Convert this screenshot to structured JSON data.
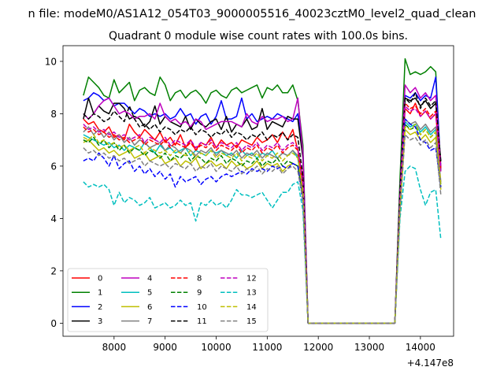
{
  "figure": {
    "suptitle": "n file: modeM0/AS1A12_054T03_9000005516_40023cztM0_level2_quad_clean",
    "offset_text": "+4.147e8"
  },
  "chart_data": {
    "type": "line",
    "title": "Quadrant 0 module wise count rates with 100.0s bins.",
    "xlabel": "",
    "ylabel": "",
    "x_offset": 414700000,
    "xlim": [
      7000,
      14650
    ],
    "ylim": [
      -0.5,
      10.6
    ],
    "xticks": [
      8000,
      9000,
      10000,
      11000,
      12000,
      13000,
      14000
    ],
    "yticks": [
      0,
      2,
      4,
      6,
      8,
      10
    ],
    "grid": false,
    "legend": {
      "position": "lower-left",
      "columns": 4
    },
    "x": [
      7400,
      7500,
      7600,
      7700,
      7800,
      7900,
      8000,
      8100,
      8200,
      8300,
      8400,
      8500,
      8600,
      8700,
      8800,
      8900,
      9000,
      9100,
      9200,
      9300,
      9400,
      9500,
      9600,
      9700,
      9800,
      9900,
      10000,
      10100,
      10200,
      10300,
      10400,
      10500,
      10600,
      10700,
      10800,
      10900,
      11000,
      11100,
      11200,
      11300,
      11400,
      11500,
      11600,
      11700,
      11800,
      11900,
      12000,
      12100,
      12200,
      12300,
      12400,
      12500,
      12600,
      12700,
      12800,
      12900,
      13000,
      13100,
      13200,
      13300,
      13400,
      13500,
      13600,
      13700,
      13800,
      13900,
      14000,
      14100,
      14200,
      14300,
      14400
    ],
    "series": [
      {
        "name": "0",
        "color": "#ff0000",
        "dash": false,
        "values": [
          7.8,
          7.6,
          7.7,
          7.4,
          7.3,
          7.5,
          7.1,
          7.2,
          7.0,
          7.6,
          7.3,
          7.1,
          7.4,
          7.2,
          7.0,
          7.3,
          6.9,
          7.1,
          6.8,
          7.2,
          6.7,
          7.0,
          6.6,
          6.9,
          6.8,
          7.1,
          6.7,
          7.0,
          6.8,
          6.9,
          6.7,
          7.0,
          6.9,
          6.8,
          7.1,
          6.9,
          7.0,
          7.2,
          6.9,
          7.3,
          7.0,
          7.4,
          6.6,
          5.5,
          0,
          0,
          0,
          0,
          0,
          0,
          0,
          0,
          0,
          0,
          0,
          0,
          0,
          0,
          0,
          0,
          0,
          0,
          4.5,
          8.2,
          8.0,
          8.4,
          7.9,
          8.1,
          7.8,
          8.0,
          5.8
        ]
      },
      {
        "name": "1",
        "color": "#008000",
        "dash": false,
        "values": [
          8.7,
          9.4,
          9.2,
          9.0,
          8.7,
          8.6,
          9.3,
          8.8,
          9.0,
          9.2,
          8.5,
          8.9,
          9.0,
          8.8,
          8.7,
          9.4,
          9.1,
          8.5,
          8.8,
          8.9,
          8.6,
          8.8,
          8.9,
          8.7,
          8.4,
          8.8,
          8.9,
          8.7,
          8.6,
          8.9,
          9.0,
          8.8,
          8.9,
          9.0,
          9.1,
          8.6,
          9.0,
          8.9,
          9.1,
          8.8,
          8.8,
          9.1,
          8.5,
          6.8,
          0,
          0,
          0,
          0,
          0,
          0,
          0,
          0,
          0,
          0,
          0,
          0,
          0,
          0,
          0,
          0,
          0,
          0,
          5.5,
          10.1,
          9.5,
          9.6,
          9.5,
          9.6,
          9.8,
          9.6,
          5.8
        ]
      },
      {
        "name": "2",
        "color": "#0000ff",
        "dash": false,
        "values": [
          8.5,
          8.6,
          8.8,
          8.7,
          8.5,
          8.6,
          8.3,
          8.4,
          8.4,
          8.2,
          8.0,
          8.2,
          8.1,
          7.9,
          8.0,
          7.9,
          8.0,
          7.8,
          7.9,
          8.2,
          7.9,
          8.0,
          7.6,
          7.9,
          8.0,
          7.6,
          7.9,
          8.5,
          7.8,
          7.8,
          7.9,
          8.6,
          7.8,
          8.0,
          7.7,
          7.8,
          7.9,
          7.8,
          8.0,
          7.9,
          7.8,
          7.7,
          8.0,
          6.5,
          0,
          0,
          0,
          0,
          0,
          0,
          0,
          0,
          0,
          0,
          0,
          0,
          0,
          0,
          0,
          0,
          0,
          0,
          5.0,
          8.7,
          8.6,
          8.8,
          8.5,
          8.7,
          8.6,
          9.4,
          5.9
        ]
      },
      {
        "name": "3",
        "color": "#000000",
        "dash": false,
        "values": [
          7.8,
          8.6,
          8.0,
          8.3,
          8.1,
          8.0,
          8.4,
          8.4,
          8.2,
          7.8,
          7.9,
          7.8,
          7.5,
          7.7,
          8.3,
          7.6,
          7.9,
          7.7,
          7.6,
          7.5,
          7.9,
          7.4,
          7.8,
          7.6,
          7.5,
          7.7,
          7.8,
          7.4,
          7.9,
          7.3,
          7.6,
          7.5,
          7.8,
          7.4,
          7.5,
          8.2,
          7.4,
          7.7,
          7.6,
          7.5,
          7.9,
          7.8,
          7.8,
          6.3,
          0,
          0,
          0,
          0,
          0,
          0,
          0,
          0,
          0,
          0,
          0,
          0,
          0,
          0,
          0,
          0,
          0,
          0,
          5.0,
          8.6,
          8.5,
          8.6,
          8.3,
          8.5,
          8.2,
          8.4,
          6.2
        ]
      },
      {
        "name": "4",
        "color": "#bf00bf",
        "dash": false,
        "values": [
          8.0,
          7.8,
          8.0,
          8.3,
          8.5,
          8.6,
          8.3,
          8.0,
          8.1,
          8.0,
          7.8,
          7.9,
          7.9,
          8.0,
          7.8,
          8.4,
          7.9,
          7.7,
          7.8,
          7.6,
          7.7,
          7.5,
          7.8,
          7.7,
          7.4,
          7.5,
          7.6,
          7.7,
          7.7,
          7.7,
          7.6,
          7.5,
          8.0,
          7.7,
          7.6,
          7.9,
          7.7,
          7.8,
          7.8,
          7.9,
          7.7,
          7.8,
          8.6,
          6.5,
          0,
          0,
          0,
          0,
          0,
          0,
          0,
          0,
          0,
          0,
          0,
          0,
          0,
          0,
          0,
          0,
          0,
          0,
          5.0,
          9.1,
          8.8,
          9.0,
          8.6,
          8.8,
          8.5,
          8.7,
          6.0
        ]
      },
      {
        "name": "5",
        "color": "#00bfbf",
        "dash": false,
        "values": [
          7.2,
          7.1,
          7.0,
          6.9,
          6.8,
          6.9,
          6.7,
          6.8,
          6.6,
          6.8,
          6.7,
          6.6,
          6.9,
          6.7,
          6.5,
          6.8,
          6.6,
          6.7,
          6.5,
          6.6,
          6.7,
          6.4,
          6.6,
          6.5,
          6.4,
          6.6,
          6.5,
          6.6,
          6.4,
          6.5,
          6.3,
          6.6,
          6.4,
          6.5,
          6.3,
          6.5,
          6.4,
          6.6,
          6.3,
          6.5,
          6.4,
          6.6,
          6.3,
          5.0,
          0,
          0,
          0,
          0,
          0,
          0,
          0,
          0,
          0,
          0,
          0,
          0,
          0,
          0,
          0,
          0,
          0,
          0,
          4.5,
          7.7,
          7.5,
          7.6,
          7.3,
          7.5,
          7.2,
          7.4,
          5.3
        ]
      },
      {
        "name": "6",
        "color": "#bfbf00",
        "dash": false,
        "values": [
          6.9,
          7.0,
          6.8,
          6.6,
          6.7,
          6.5,
          6.6,
          6.4,
          6.5,
          6.6,
          6.3,
          6.4,
          6.5,
          6.2,
          6.3,
          6.4,
          6.1,
          6.2,
          6.3,
          6.0,
          6.2,
          6.1,
          6.3,
          5.9,
          6.1,
          6.2,
          6.0,
          6.1,
          5.9,
          6.2,
          6.0,
          6.1,
          5.9,
          6.0,
          6.2,
          5.9,
          6.1,
          6.0,
          6.1,
          5.8,
          6.0,
          6.1,
          6.0,
          4.8,
          0,
          0,
          0,
          0,
          0,
          0,
          0,
          0,
          0,
          0,
          0,
          0,
          0,
          0,
          0,
          0,
          0,
          0,
          4.2,
          7.4,
          7.2,
          7.3,
          7.0,
          7.2,
          6.9,
          7.1,
          5.1
        ]
      },
      {
        "name": "7",
        "color": "#808080",
        "dash": false,
        "values": [
          7.3,
          7.5,
          7.2,
          7.4,
          7.1,
          7.3,
          7.0,
          7.2,
          6.9,
          7.1,
          6.8,
          7.0,
          6.9,
          6.7,
          6.8,
          6.9,
          6.6,
          6.8,
          6.7,
          6.5,
          6.7,
          6.6,
          6.4,
          6.6,
          6.5,
          6.7,
          6.4,
          6.6,
          6.5,
          6.4,
          6.6,
          6.3,
          6.5,
          6.4,
          6.6,
          6.3,
          6.5,
          6.4,
          6.3,
          6.5,
          6.4,
          6.6,
          6.4,
          5.1,
          0,
          0,
          0,
          0,
          0,
          0,
          0,
          0,
          0,
          0,
          0,
          0,
          0,
          0,
          0,
          0,
          0,
          0,
          4.6,
          7.8,
          7.6,
          7.7,
          7.4,
          7.6,
          7.3,
          7.5,
          5.4
        ]
      },
      {
        "name": "8",
        "color": "#ff0000",
        "dash": true,
        "values": [
          7.5,
          7.3,
          7.4,
          7.2,
          7.3,
          7.1,
          7.2,
          7.0,
          7.1,
          6.9,
          7.0,
          7.1,
          6.8,
          7.0,
          6.9,
          6.8,
          7.0,
          6.7,
          6.9,
          6.8,
          6.7,
          6.9,
          6.6,
          6.8,
          6.7,
          6.9,
          6.6,
          6.8,
          6.7,
          6.6,
          6.8,
          6.5,
          6.7,
          6.6,
          6.8,
          6.5,
          6.7,
          6.6,
          6.8,
          6.5,
          6.7,
          6.8,
          6.6,
          5.2,
          0,
          0,
          0,
          0,
          0,
          0,
          0,
          0,
          0,
          0,
          0,
          0,
          0,
          0,
          0,
          0,
          0,
          0,
          4.7,
          8.4,
          8.2,
          8.3,
          8.0,
          8.2,
          7.9,
          8.1,
          5.9
        ]
      },
      {
        "name": "9",
        "color": "#008000",
        "dash": true,
        "values": [
          7.0,
          6.9,
          7.1,
          6.8,
          7.0,
          6.7,
          6.9,
          6.6,
          6.8,
          6.5,
          6.7,
          6.6,
          6.4,
          6.6,
          6.5,
          6.3,
          6.5,
          6.2,
          6.4,
          6.3,
          6.5,
          6.2,
          6.4,
          6.3,
          6.1,
          6.3,
          6.2,
          6.4,
          6.1,
          6.3,
          6.2,
          6.0,
          6.2,
          6.1,
          6.3,
          6.0,
          6.2,
          6.1,
          6.3,
          6.0,
          6.2,
          6.1,
          6.0,
          4.9,
          0,
          0,
          0,
          0,
          0,
          0,
          0,
          0,
          0,
          0,
          0,
          0,
          0,
          0,
          0,
          0,
          0,
          0,
          4.3,
          7.6,
          7.4,
          7.5,
          7.2,
          7.4,
          7.1,
          7.3,
          5.2
        ]
      },
      {
        "name": "10",
        "color": "#0000ff",
        "dash": true,
        "values": [
          6.2,
          6.3,
          6.2,
          6.5,
          6.3,
          6.0,
          6.4,
          5.9,
          6.1,
          6.2,
          5.8,
          6.0,
          5.7,
          5.9,
          5.6,
          5.8,
          5.5,
          5.7,
          5.2,
          5.6,
          5.4,
          5.5,
          5.6,
          5.3,
          5.5,
          5.6,
          5.4,
          5.6,
          5.7,
          5.6,
          5.7,
          5.8,
          5.7,
          5.9,
          5.8,
          5.9,
          5.8,
          6.0,
          5.9,
          6.0,
          5.9,
          6.1,
          6.0,
          4.6,
          0,
          0,
          0,
          0,
          0,
          0,
          0,
          0,
          0,
          0,
          0,
          0,
          0,
          0,
          0,
          0,
          0,
          0,
          4.4,
          7.8,
          7.6,
          7.5,
          7.0,
          6.9,
          6.6,
          6.7,
          5.2
        ]
      },
      {
        "name": "11",
        "color": "#000000",
        "dash": true,
        "values": [
          8.0,
          7.8,
          8.0,
          7.9,
          7.7,
          7.8,
          8.1,
          7.9,
          7.7,
          8.3,
          7.8,
          7.5,
          7.6,
          7.4,
          7.6,
          7.3,
          7.5,
          7.4,
          7.2,
          7.4,
          7.3,
          7.5,
          7.2,
          7.4,
          7.3,
          7.1,
          7.3,
          7.2,
          7.4,
          7.1,
          7.3,
          7.2,
          7.0,
          7.2,
          7.1,
          7.3,
          7.0,
          7.2,
          7.1,
          7.3,
          7.0,
          7.2,
          7.1,
          5.6,
          0,
          0,
          0,
          0,
          0,
          0,
          0,
          0,
          0,
          0,
          0,
          0,
          0,
          0,
          0,
          0,
          0,
          0,
          5.0,
          8.6,
          8.4,
          8.8,
          8.2,
          8.6,
          8.3,
          8.5,
          6.1
        ]
      },
      {
        "name": "12",
        "color": "#bf00bf",
        "dash": true,
        "values": [
          7.6,
          7.4,
          7.5,
          7.3,
          7.4,
          7.2,
          7.3,
          7.1,
          7.2,
          7.0,
          7.1,
          7.2,
          6.9,
          7.1,
          7.0,
          6.9,
          7.1,
          6.8,
          7.0,
          6.9,
          6.8,
          7.0,
          6.7,
          6.9,
          6.8,
          7.0,
          6.7,
          6.9,
          6.8,
          6.7,
          6.9,
          6.6,
          6.8,
          6.7,
          6.9,
          6.6,
          6.8,
          6.7,
          6.9,
          6.6,
          6.8,
          6.9,
          6.7,
          5.3,
          0,
          0,
          0,
          0,
          0,
          0,
          0,
          0,
          0,
          0,
          0,
          0,
          0,
          0,
          0,
          0,
          0,
          0,
          4.8,
          8.3,
          8.1,
          8.2,
          7.9,
          8.1,
          7.8,
          8.0,
          5.8
        ]
      },
      {
        "name": "13",
        "color": "#00bfbf",
        "dash": true,
        "values": [
          5.4,
          5.2,
          5.3,
          5.2,
          5.3,
          5.1,
          4.5,
          5.0,
          4.6,
          4.8,
          4.7,
          4.5,
          4.6,
          4.8,
          4.4,
          4.5,
          4.6,
          4.4,
          4.5,
          4.7,
          4.5,
          4.6,
          3.9,
          4.6,
          4.5,
          4.7,
          4.5,
          4.6,
          4.4,
          4.7,
          5.1,
          4.9,
          4.9,
          4.8,
          4.9,
          5.0,
          4.7,
          4.4,
          4.7,
          5.0,
          5.0,
          5.3,
          5.4,
          4.3,
          0,
          0,
          0,
          0,
          0,
          0,
          0,
          0,
          0,
          0,
          0,
          0,
          0,
          0,
          0,
          0,
          0,
          0,
          4.0,
          5.8,
          6.0,
          5.9,
          5.1,
          4.5,
          5.0,
          5.1,
          3.2
        ]
      },
      {
        "name": "14",
        "color": "#bfbf00",
        "dash": true,
        "values": [
          7.1,
          7.0,
          7.2,
          6.9,
          7.0,
          6.8,
          6.9,
          6.7,
          6.8,
          6.6,
          6.7,
          6.8,
          6.5,
          6.7,
          6.6,
          6.5,
          6.6,
          6.4,
          6.6,
          6.5,
          6.4,
          6.6,
          6.3,
          6.5,
          6.4,
          6.6,
          6.3,
          6.5,
          6.4,
          6.3,
          6.5,
          6.2,
          6.4,
          6.3,
          6.5,
          6.2,
          6.4,
          6.3,
          6.5,
          6.2,
          6.4,
          6.5,
          6.3,
          5.0,
          0,
          0,
          0,
          0,
          0,
          0,
          0,
          0,
          0,
          0,
          0,
          0,
          0,
          0,
          0,
          0,
          0,
          0,
          4.4,
          7.5,
          7.4,
          7.6,
          7.2,
          7.4,
          7.1,
          7.3,
          5.3
        ]
      },
      {
        "name": "15",
        "color": "#808080",
        "dash": true,
        "values": [
          6.7,
          6.5,
          6.6,
          6.4,
          6.5,
          6.3,
          6.4,
          6.2,
          6.3,
          6.1,
          6.2,
          6.3,
          6.0,
          6.2,
          6.1,
          6.0,
          6.1,
          5.9,
          6.1,
          6.0,
          5.9,
          6.1,
          5.8,
          6.0,
          5.9,
          6.1,
          5.8,
          6.0,
          5.9,
          5.8,
          6.0,
          5.7,
          5.9,
          5.8,
          6.0,
          5.7,
          5.9,
          5.8,
          6.0,
          5.7,
          5.9,
          6.0,
          5.8,
          4.7,
          0,
          0,
          0,
          0,
          0,
          0,
          0,
          0,
          0,
          0,
          0,
          0,
          0,
          0,
          0,
          0,
          0,
          0,
          4.3,
          7.2,
          7.0,
          7.1,
          6.8,
          7.0,
          6.7,
          6.9,
          4.9
        ]
      }
    ]
  }
}
